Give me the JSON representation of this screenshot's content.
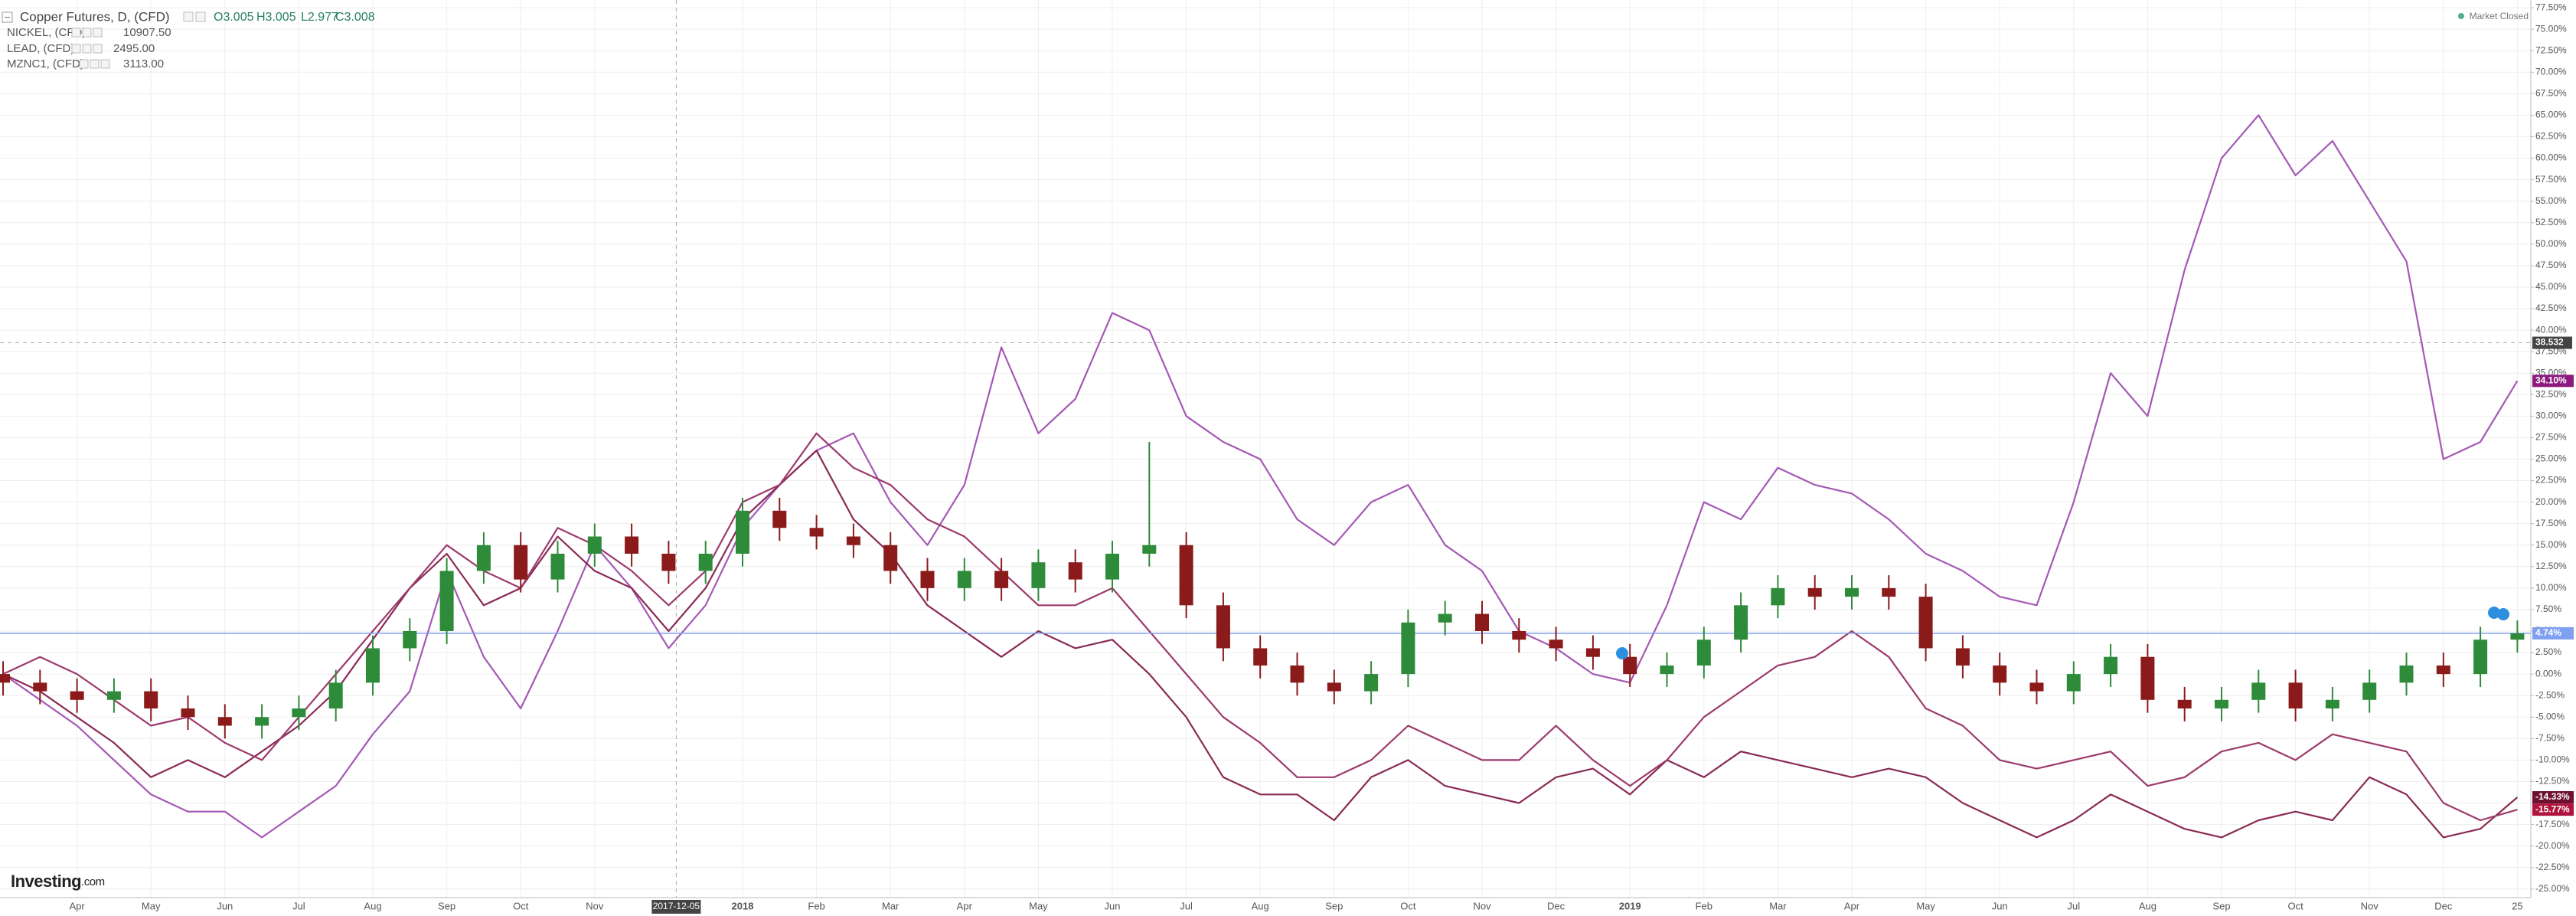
{
  "chart_data": {
    "type": "candlestick",
    "market_status": "Market Closed",
    "logo": {
      "brand": "Investing",
      "suffix": ".com"
    },
    "categories": [
      null,
      null,
      "Apr",
      null,
      "May",
      null,
      "Jun",
      null,
      "Jul",
      null,
      "Aug",
      null,
      "Sep",
      null,
      "Oct",
      null,
      "Nov",
      null,
      null,
      null,
      "2018",
      null,
      "Feb",
      null,
      "Mar",
      null,
      "Apr",
      null,
      "May",
      null,
      "Jun",
      null,
      "Jul",
      null,
      "Aug",
      null,
      "Sep",
      null,
      "Oct",
      null,
      "Nov",
      null,
      "Dec",
      null,
      "2019",
      null,
      "Feb",
      null,
      "Mar",
      null,
      "Apr",
      null,
      "May",
      null,
      "Jun",
      null,
      "Jul",
      null,
      "Aug",
      null,
      "Sep",
      null,
      "Oct",
      null,
      "Nov",
      null,
      "Dec",
      null,
      "25"
    ],
    "ylim": [
      -26,
      78.4
    ],
    "yticks": [
      {
        "value": 77.5,
        "label": "77.50%"
      },
      {
        "value": 75,
        "label": "75.00%"
      },
      {
        "value": 72.5,
        "label": "72.50%"
      },
      {
        "value": 70,
        "label": "70.00%"
      },
      {
        "value": 67.5,
        "label": "67.50%"
      },
      {
        "value": 65,
        "label": "65.00%"
      },
      {
        "value": 62.5,
        "label": "62.50%"
      },
      {
        "value": 60,
        "label": "60.00%"
      },
      {
        "value": 57.5,
        "label": "57.50%"
      },
      {
        "value": 55,
        "label": "55.00%"
      },
      {
        "value": 52.5,
        "label": "52.50%"
      },
      {
        "value": 50,
        "label": "50.00%"
      },
      {
        "value": 47.5,
        "label": "47.50%"
      },
      {
        "value": 45,
        "label": "45.00%"
      },
      {
        "value": 42.5,
        "label": "42.50%"
      },
      {
        "value": 40,
        "label": "40.00%"
      },
      {
        "value": 37.5,
        "label": "37.50%"
      },
      {
        "value": 35,
        "label": "35.00%"
      },
      {
        "value": 32.5,
        "label": "32.50%"
      },
      {
        "value": 30,
        "label": "30.00%"
      },
      {
        "value": 27.5,
        "label": "27.50%"
      },
      {
        "value": 25,
        "label": "25.00%"
      },
      {
        "value": 22.5,
        "label": "22.50%"
      },
      {
        "value": 20,
        "label": "20.00%"
      },
      {
        "value": 17.5,
        "label": "17.50%"
      },
      {
        "value": 15,
        "label": "15.00%"
      },
      {
        "value": 12.5,
        "label": "12.50%"
      },
      {
        "value": 10,
        "label": "10.00%"
      },
      {
        "value": 7.5,
        "label": "7.50%"
      },
      {
        "value": 5,
        "label": "5.00%"
      },
      {
        "value": 2.5,
        "label": "2.50%"
      },
      {
        "value": 0,
        "label": "0.00%"
      },
      {
        "value": -2.5,
        "label": "-2.50%"
      },
      {
        "value": -5,
        "label": "-5.00%"
      },
      {
        "value": -7.5,
        "label": "-7.50%"
      },
      {
        "value": -10,
        "label": "-10.00%"
      },
      {
        "value": -12.5,
        "label": "-12.50%"
      },
      {
        "value": -15,
        "label": "-15.00%"
      },
      {
        "value": -17.5,
        "label": "-17.50%"
      },
      {
        "value": -20,
        "label": "-20.00%"
      },
      {
        "value": -22.5,
        "label": "-22.50%"
      },
      {
        "value": -25,
        "label": "-25.00%"
      }
    ],
    "grid": true,
    "crosshair": {
      "x": "2017-12-05",
      "y": 38.532
    },
    "series": [
      {
        "name": "Copper Futures, D, (CFD)",
        "type": "candlestick",
        "ohlc_labels": [
          "O3.005",
          "H3.005",
          "L2.977",
          "C3.008"
        ],
        "up_color": "#2e8b3a",
        "down_color": "#8b1a1a",
        "line_color": "#7f9ff0",
        "last_label": "4.74%",
        "open": [
          0,
          -1,
          -2,
          -3,
          -2,
          -4,
          -5,
          -6,
          -5,
          -4,
          -1,
          3,
          5,
          12,
          15,
          11,
          14,
          16,
          14,
          12,
          14,
          19,
          17,
          16,
          15,
          12,
          10,
          12,
          10,
          13,
          11,
          14,
          15,
          8,
          3,
          1,
          -1,
          -2,
          0,
          6,
          7,
          5,
          4,
          3,
          2,
          0,
          1,
          4,
          8,
          10,
          9,
          10,
          9,
          3,
          1,
          -1,
          -2,
          0,
          2,
          -3,
          -4,
          -3,
          -1,
          -4,
          -3,
          -1,
          1,
          0,
          4
        ],
        "high": [
          1.5,
          0.5,
          -0.5,
          -0.5,
          -0.5,
          -2.5,
          -3.5,
          -3.5,
          -2.5,
          0.5,
          4.5,
          6.5,
          13.5,
          16.5,
          16.5,
          15.5,
          17.5,
          17.5,
          15.5,
          15.5,
          20.5,
          20.5,
          18.5,
          17.5,
          16.5,
          13.5,
          13.5,
          13.5,
          14.5,
          14.5,
          15.5,
          27,
          16.5,
          9.5,
          4.5,
          2.5,
          0.5,
          1.5,
          7.5,
          8.5,
          8.5,
          6.5,
          5.5,
          4.5,
          3.5,
          2.5,
          5.5,
          9.5,
          11.5,
          11.5,
          11.5,
          11.5,
          10.5,
          4.5,
          2.5,
          0.5,
          1.5,
          3.5,
          3.5,
          -1.5,
          -1.5,
          0.5,
          0.5,
          -1.5,
          0.5,
          2.5,
          2.5,
          5.5,
          6.24
        ],
        "low": [
          -2.5,
          -3.5,
          -4.5,
          -4.5,
          -5.5,
          -6.5,
          -7.5,
          -7.5,
          -6.5,
          -5.5,
          -2.5,
          1.5,
          3.5,
          10.5,
          9.5,
          9.5,
          12.5,
          12.5,
          10.5,
          10.5,
          12.5,
          15.5,
          14.5,
          13.5,
          10.5,
          8.5,
          8.5,
          8.5,
          8.5,
          9.5,
          9.5,
          12.5,
          6.5,
          1.5,
          -0.5,
          -2.5,
          -3.5,
          -3.5,
          -1.5,
          4.5,
          3.5,
          2.5,
          1.5,
          0.5,
          -1.5,
          -1.5,
          -0.5,
          2.5,
          6.5,
          7.5,
          7.5,
          7.5,
          1.5,
          -0.5,
          -2.5,
          -3.5,
          -3.5,
          -1.5,
          -4.5,
          -5.5,
          -5.5,
          -4.5,
          -5.5,
          -5.5,
          -4.5,
          -2.5,
          -1.5,
          -1.5,
          2.5
        ],
        "close": [
          -1,
          -2,
          -3,
          -2,
          -4,
          -5,
          -6,
          -5,
          -4,
          -1,
          3,
          5,
          12,
          15,
          11,
          14,
          16,
          14,
          12,
          14,
          19,
          17,
          16,
          15,
          12,
          10,
          12,
          10,
          13,
          11,
          14,
          15,
          8,
          3,
          1,
          -1,
          -2,
          0,
          6,
          7,
          5,
          4,
          3,
          2,
          0,
          1,
          4,
          8,
          10,
          9,
          10,
          9,
          3,
          1,
          -1,
          -2,
          0,
          2,
          -3,
          -4,
          -3,
          -1,
          -4,
          -3,
          -1,
          1,
          0,
          4,
          4.74
        ]
      },
      {
        "name": "NICKEL, (CFD)",
        "type": "line",
        "color": "#a558b5",
        "label_color": "#8d1a7e",
        "legend_value": "10907.50",
        "last_label": "34.10%",
        "values": [
          0,
          -3,
          -6,
          -10,
          -14,
          -16,
          -16,
          -19,
          -16,
          -13,
          -7,
          -2,
          12,
          2,
          -4,
          5,
          15,
          10,
          3,
          8,
          17,
          22,
          26,
          28,
          20,
          15,
          22,
          38,
          28,
          32,
          42,
          40,
          30,
          27,
          25,
          18,
          15,
          20,
          22,
          15,
          12,
          5,
          3,
          0,
          -1,
          8,
          20,
          18,
          24,
          22,
          21,
          18,
          14,
          12,
          9,
          8,
          20,
          35,
          30,
          47,
          60,
          65,
          58,
          62,
          55,
          48,
          25,
          27,
          34.1
        ]
      },
      {
        "name": "LEAD, (CFD)",
        "type": "line",
        "color": "#8a2a55",
        "label_color": "#6e1030",
        "legend_value": "2495.00",
        "last_label": "-14.33%",
        "values": [
          0,
          -2,
          -5,
          -8,
          -12,
          -10,
          -12,
          -9,
          -6,
          -2,
          4,
          10,
          14,
          8,
          10,
          16,
          12,
          10,
          5,
          10,
          18,
          22,
          26,
          18,
          14,
          8,
          5,
          2,
          5,
          3,
          4,
          0,
          -5,
          -12,
          -14,
          -14,
          -17,
          -12,
          -10,
          -13,
          -14,
          -15,
          -12,
          -11,
          -14,
          -10,
          -12,
          -9,
          -10,
          -11,
          -12,
          -11,
          -12,
          -15,
          -17,
          -19,
          -17,
          -14,
          -16,
          -18,
          -19,
          -17,
          -16,
          -17,
          -12,
          -14,
          -19,
          -18,
          -14.33
        ]
      },
      {
        "name": "MZNC1, (CFD)",
        "type": "line",
        "color": "#9c3a6c",
        "label_color": "#b0133c",
        "legend_value": "3113.00",
        "last_label": "-15.77%",
        "values": [
          0,
          2,
          0,
          -3,
          -6,
          -5,
          -8,
          -10,
          -5,
          0,
          5,
          10,
          15,
          12,
          10,
          17,
          15,
          12,
          8,
          12,
          20,
          22,
          28,
          24,
          22,
          18,
          16,
          12,
          8,
          8,
          10,
          5,
          0,
          -5,
          -8,
          -12,
          -12,
          -10,
          -6,
          -8,
          -10,
          -10,
          -6,
          -10,
          -13,
          -10,
          -5,
          -2,
          1,
          2,
          5,
          2,
          -4,
          -6,
          -10,
          -11,
          -10,
          -9,
          -13,
          -12,
          -9,
          -8,
          -10,
          -7,
          -8,
          -9,
          -15,
          -17,
          -15.77
        ]
      }
    ]
  }
}
